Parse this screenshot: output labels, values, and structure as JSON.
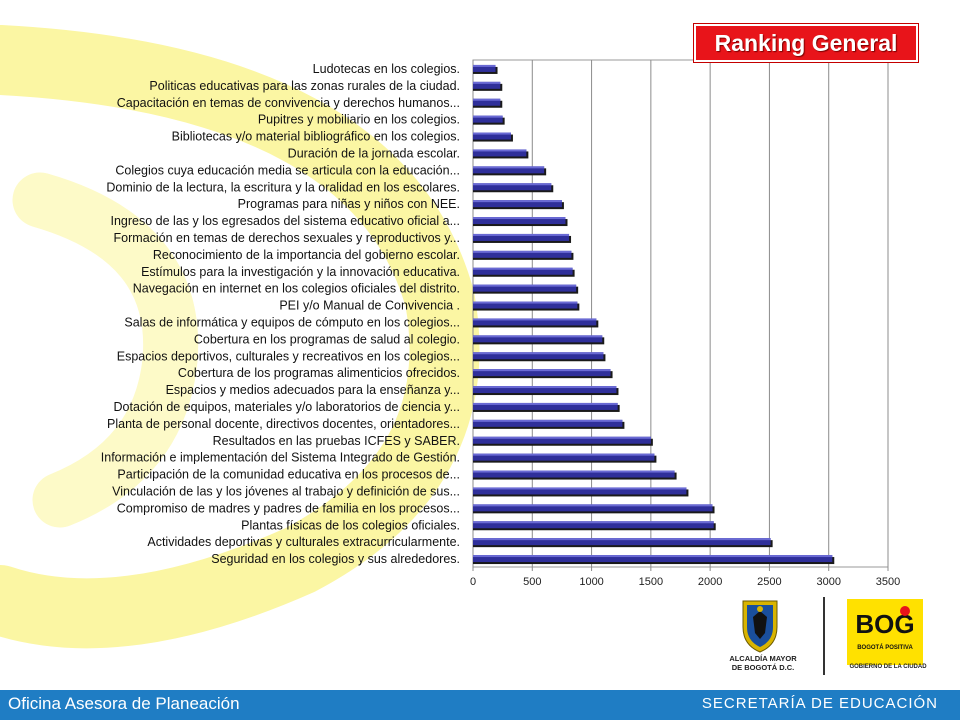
{
  "header": {
    "title": "Ranking General"
  },
  "footer": {
    "left_text": "Oficina Asesora de Planeación",
    "right_text": "SECRETARÍA DE EDUCACIÓN"
  },
  "logos": {
    "alcaldia_line1": "ALCALDÍA MAYOR",
    "alcaldia_line2": "DE BOGOTÁ D.C.",
    "bog_text": "BOG",
    "bogota_positiva": "BOGOTÁ POSITIVA",
    "gobierno_text": "GOBIERNO DE LA CIUDAD"
  },
  "colors": {
    "bar_fill": "#2f2f9a",
    "bar_highlight": "#6a6ad4",
    "footer": "#1f7dc4",
    "title_bg": "#e8141a",
    "decor_yellow": "#fbf6a3"
  },
  "chart_data": {
    "type": "bar",
    "orientation": "horizontal",
    "title": "Ranking General",
    "xlim": [
      0,
      3500
    ],
    "xticks": [
      0,
      500,
      1000,
      1500,
      2000,
      2500,
      3000,
      3500
    ],
    "grid": true,
    "categories": [
      "Ludotecas en los colegios.",
      "Politicas educativas para las zonas rurales de la ciudad.",
      "Capacitación en temas de convivencia y derechos humanos...",
      "Pupitres y mobiliario en los colegios.",
      "Bibliotecas y/o material bibliográfico en los colegios.",
      "Duración de la jornada escolar.",
      "Colegios cuya educación media se articula con la educación...",
      "Dominio de la lectura, la escritura y la oralidad en los escolares.",
      "Programas para niñas y niños con NEE.",
      "Ingreso de las y los egresados del sistema educativo oficial a...",
      "Formación en temas de derechos sexuales y reproductivos y...",
      "Reconocimiento de la importancia del gobierno escolar.",
      "Estímulos para la investigación y la innovación educativa.",
      "Navegación en internet en los colegios oficiales del distrito.",
      "PEI y/o Manual de Convivencia .",
      "Salas de informática y equipos de cómputo en los colegios...",
      "Cobertura en los programas de salud al colegio.",
      "Espacios deportivos, culturales y recreativos en los colegios...",
      "Cobertura de los programas alimenticios ofrecidos.",
      "Espacios y medios adecuados para la enseñanza y...",
      "Dotación de equipos, materiales y/o laboratorios de ciencia y...",
      "Planta de personal docente, directivos docentes, orientadores...",
      "Resultados en las pruebas ICFES y SABER.",
      "Información e implementación del Sistema Integrado de Gestión.",
      "Participación de la comunidad educativa en los procesos de...",
      "Vinculación de las y los jóvenes al trabajo y definición de sus...",
      "Compromiso de madres y padres de familia en los procesos...",
      "Plantas físicas de los colegios oficiales.",
      "Actividades deportivas y culturales extracurricularmente.",
      "Seguridad en los colegios y sus alrededores."
    ],
    "values": [
      190,
      230,
      230,
      250,
      320,
      450,
      600,
      660,
      750,
      780,
      810,
      830,
      840,
      870,
      880,
      1040,
      1090,
      1100,
      1160,
      1210,
      1220,
      1260,
      1500,
      1530,
      1700,
      1800,
      2020,
      2030,
      2510,
      3030
    ]
  }
}
